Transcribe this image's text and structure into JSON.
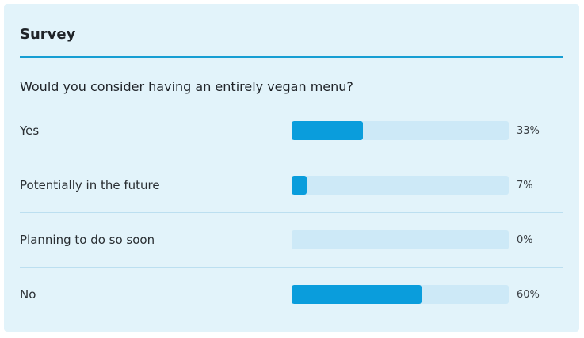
{
  "survey": {
    "title": "Survey",
    "question": "Would you consider having an entirely vegan menu?",
    "accent_color": "#169ed3",
    "bar_fill_color": "#0a9ddc",
    "bar_track_color": "#cde9f7",
    "options": [
      {
        "label": "Yes",
        "percent_text": "33%",
        "value": 33
      },
      {
        "label": "Potentially in the future",
        "percent_text": "7%",
        "value": 7
      },
      {
        "label": "Planning to do so soon",
        "percent_text": "0%",
        "value": 0
      },
      {
        "label": "No",
        "percent_text": "60%",
        "value": 60
      }
    ]
  }
}
